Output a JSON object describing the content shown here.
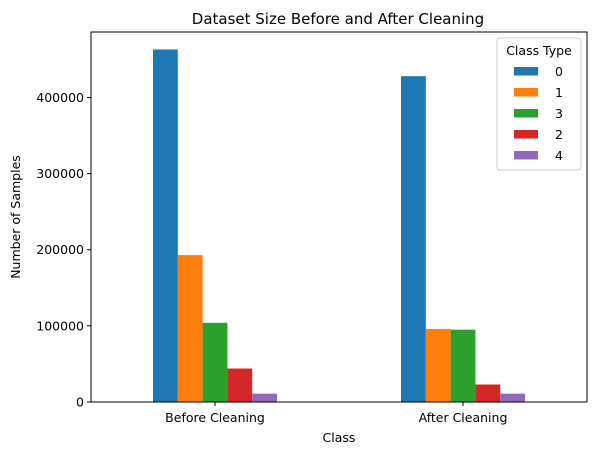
{
  "chart_data": {
    "type": "bar",
    "title": "Dataset Size Before and After Cleaning",
    "xlabel": "Class",
    "ylabel": "Number of Samples",
    "categories": [
      "Before Cleaning",
      "After Cleaning"
    ],
    "series": [
      {
        "name": "0",
        "color": "#1f77b4",
        "values": [
          463000,
          428000
        ]
      },
      {
        "name": "1",
        "color": "#ff7f0e",
        "values": [
          193000,
          96000
        ]
      },
      {
        "name": "3",
        "color": "#2ca02c",
        "values": [
          104000,
          95000
        ]
      },
      {
        "name": "2",
        "color": "#d62728",
        "values": [
          44000,
          23000
        ]
      },
      {
        "name": "4",
        "color": "#9467bd",
        "values": [
          11000,
          11000
        ]
      }
    ],
    "ylim": [
      0,
      486000
    ],
    "yticks": [
      0,
      100000,
      200000,
      300000,
      400000
    ],
    "ytick_labels": [
      "0",
      "100000",
      "200000",
      "300000",
      "400000"
    ],
    "legend": {
      "title": "Class Type",
      "placement": "top-right"
    },
    "grid": false
  }
}
